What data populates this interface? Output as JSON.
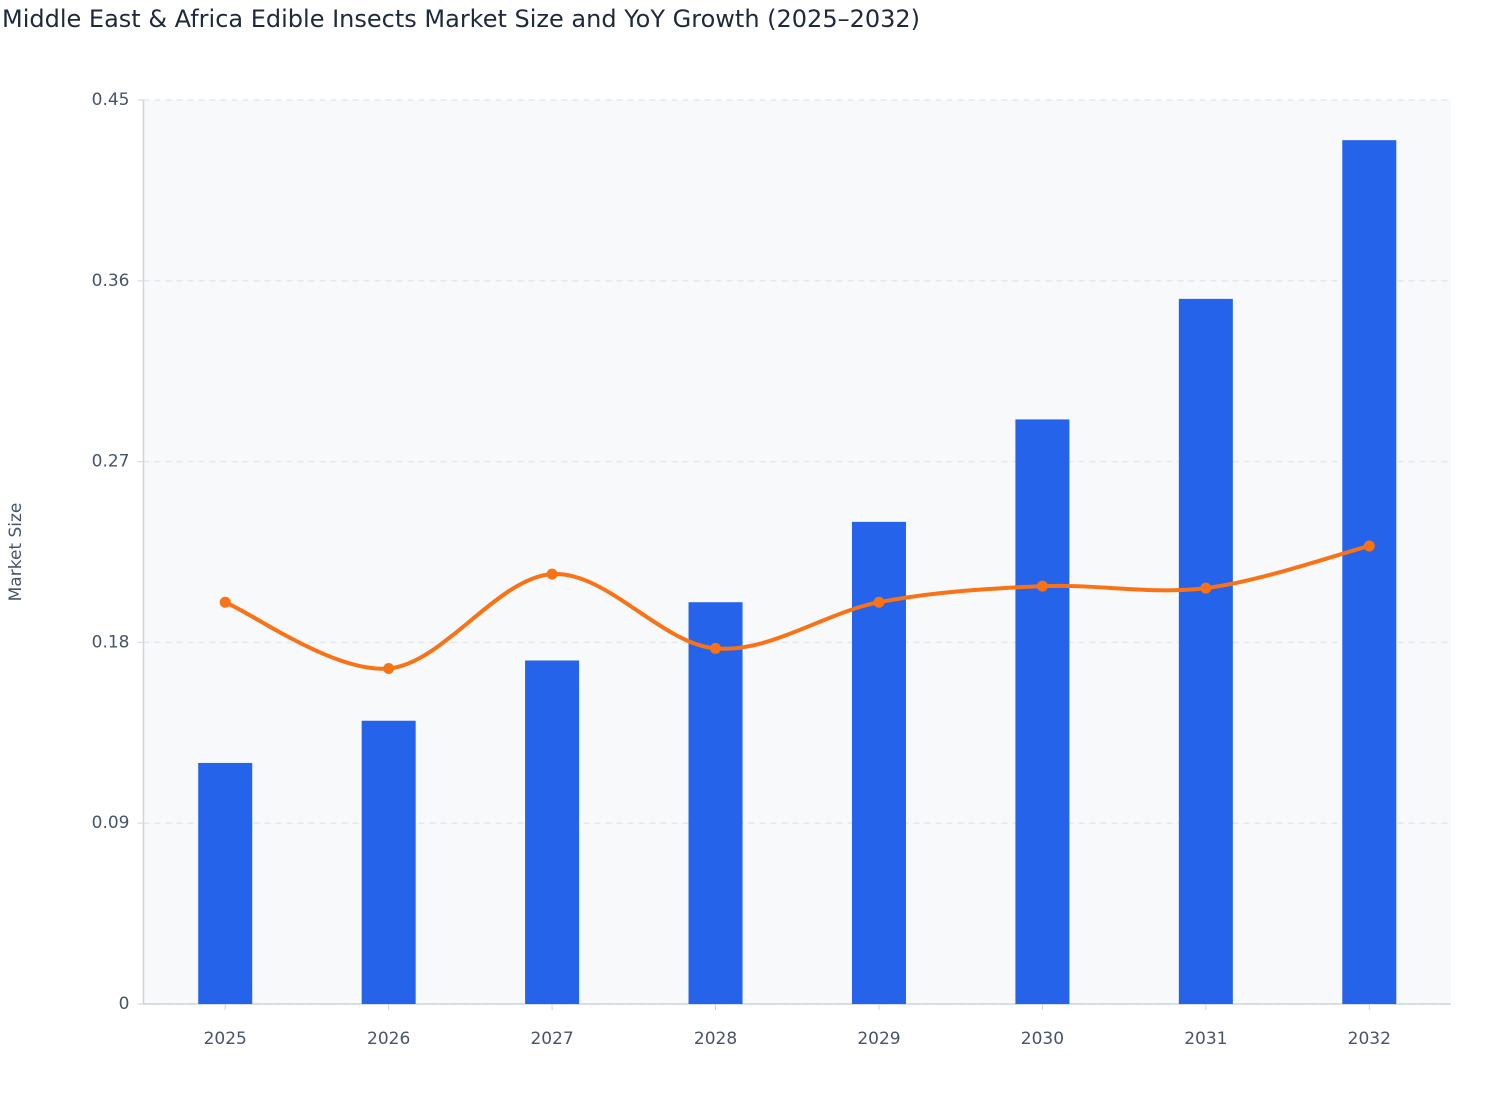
{
  "chart_data": {
    "type": "bar",
    "title": "Middle East & Africa Edible Insects Market Size and YoY Growth (2025–2032)",
    "y_label": "Market Size",
    "categories": [
      "2025",
      "2026",
      "2027",
      "2028",
      "2029",
      "2030",
      "2031",
      "2032"
    ],
    "series": [
      {
        "type": "bar",
        "color": "#2563eb",
        "values": [
          0.12,
          0.141,
          0.171,
          0.2,
          0.24,
          0.291,
          0.351,
          0.43
        ]
      },
      {
        "type": "line",
        "color": "#f97316",
        "smooth": true,
        "values": [
          0.2,
          0.167,
          0.214,
          0.177,
          0.2,
          0.208,
          0.207,
          0.228
        ]
      }
    ],
    "ylim": [
      0,
      0.45
    ],
    "yticks": [
      0,
      0.09,
      0.18,
      0.27,
      0.36,
      0.45
    ],
    "grid": true
  }
}
